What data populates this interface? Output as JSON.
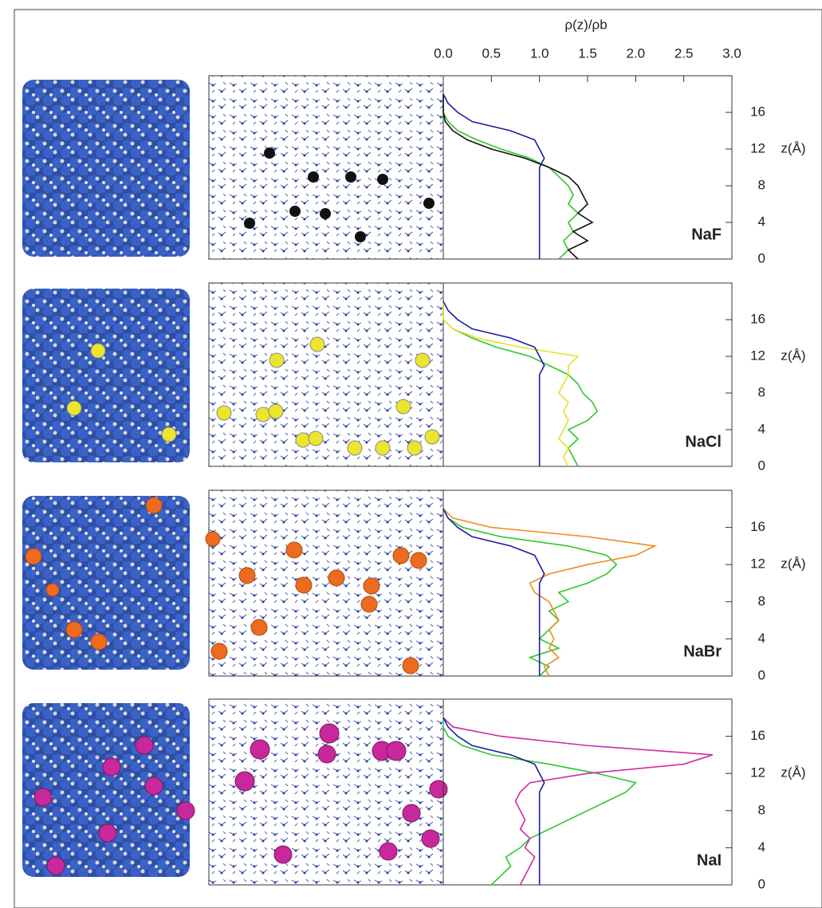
{
  "chart_data": [
    {
      "type": "line",
      "xlabel": "ρ(z)/ρb",
      "ylabel": "z(Å)",
      "label": "NaF",
      "xlim": [
        0,
        3
      ],
      "xticks": [
        {
          "value": 0,
          "label": "0.0"
        },
        {
          "value": 0.5,
          "label": "0.5"
        },
        {
          "value": 1,
          "label": "1.0"
        },
        {
          "value": 1.5,
          "label": "1.5"
        },
        {
          "value": 2,
          "label": "2.0"
        },
        {
          "value": 2.5,
          "label": "2.5"
        },
        {
          "value": 3,
          "label": "3.0"
        }
      ],
      "ylim": [
        0,
        20
      ],
      "yticks": [
        0,
        4,
        8,
        12,
        16
      ],
      "z": [
        0,
        1,
        2,
        3,
        4,
        5,
        6,
        7,
        8,
        9,
        10,
        11,
        12,
        13,
        14,
        15,
        16,
        17,
        18
      ],
      "series": [
        {
          "color": "#2ec82e",
          "values": [
            1.2,
            1.3,
            1.25,
            1.35,
            1.3,
            1.4,
            1.3,
            1.35,
            1.3,
            1.2,
            1.1,
            0.9,
            0.6,
            0.35,
            0.15,
            0.05,
            0,
            0,
            0
          ]
        },
        {
          "color": "#111111",
          "values": [
            1.4,
            1.3,
            1.5,
            1.35,
            1.55,
            1.4,
            1.5,
            1.45,
            1.4,
            1.3,
            1.1,
            0.85,
            0.5,
            0.25,
            0.1,
            0.02,
            0,
            0,
            0
          ]
        },
        {
          "color": "#1c1ca8",
          "values": [
            1,
            1,
            1,
            1,
            1,
            1,
            1,
            1,
            1,
            1,
            1,
            1.05,
            1,
            0.95,
            0.7,
            0.3,
            0.15,
            0.05,
            0
          ]
        }
      ]
    },
    {
      "type": "line",
      "ylabel": "z(Å)",
      "label": "NaCl",
      "xlim": [
        0,
        3
      ],
      "ylim": [
        0,
        20
      ],
      "yticks": [
        0,
        4,
        8,
        12,
        16
      ],
      "z": [
        0,
        1,
        2,
        3,
        4,
        5,
        6,
        7,
        8,
        9,
        10,
        11,
        12,
        13,
        14,
        15,
        16,
        17,
        18
      ],
      "series": [
        {
          "color": "#2ec82e",
          "values": [
            1.4,
            1.35,
            1.3,
            1.4,
            1.3,
            1.5,
            1.6,
            1.55,
            1.45,
            1.4,
            1.3,
            1.1,
            0.9,
            0.55,
            0.3,
            0.1,
            0,
            0,
            0
          ]
        },
        {
          "color": "#e6e02a",
          "values": [
            1.3,
            1.25,
            1.3,
            1.2,
            1.25,
            1.3,
            1.25,
            1.3,
            1.2,
            1.25,
            1.3,
            1.3,
            1.4,
            0.8,
            0.35,
            0.1,
            0,
            0,
            0
          ]
        },
        {
          "color": "#1c1ca8",
          "values": [
            1,
            1,
            1,
            1,
            1,
            1,
            1,
            1,
            1,
            1,
            1,
            1.05,
            1,
            0.95,
            0.7,
            0.3,
            0.15,
            0.05,
            0
          ]
        }
      ]
    },
    {
      "type": "line",
      "ylabel": "z(Å)",
      "label": "NaBr",
      "xlim": [
        0,
        3
      ],
      "ylim": [
        0,
        20
      ],
      "yticks": [
        0,
        4,
        8,
        12,
        16
      ],
      "z": [
        0,
        1,
        2,
        3,
        4,
        5,
        6,
        7,
        8,
        9,
        10,
        11,
        12,
        13,
        14,
        15,
        16,
        17,
        18
      ],
      "series": [
        {
          "color": "#2ec82e",
          "values": [
            1,
            1.1,
            0.9,
            1.2,
            1,
            1.1,
            1.2,
            1.1,
            1.3,
            1.2,
            1.5,
            1.7,
            1.8,
            1.7,
            1.3,
            0.6,
            0.2,
            0.05,
            0
          ]
        },
        {
          "color": "#f08c1e",
          "values": [
            1.1,
            1.05,
            1.2,
            1.1,
            1.15,
            1.1,
            1.2,
            1.15,
            1.1,
            0.95,
            0.9,
            1.1,
            1.5,
            2,
            2.2,
            1.5,
            0.5,
            0.1,
            0
          ]
        },
        {
          "color": "#1c1ca8",
          "values": [
            1,
            1,
            1,
            1,
            1,
            1,
            1,
            1,
            1,
            1,
            1,
            1.05,
            1,
            0.95,
            0.7,
            0.3,
            0.15,
            0.05,
            0
          ]
        }
      ]
    },
    {
      "type": "line",
      "ylabel": "z(Å)",
      "label": "NaI",
      "xlim": [
        0,
        3
      ],
      "ylim": [
        0,
        20
      ],
      "yticks": [
        0,
        4,
        8,
        12,
        16
      ],
      "z": [
        0,
        1,
        2,
        3,
        4,
        5,
        6,
        7,
        8,
        9,
        10,
        11,
        12,
        13,
        14,
        15,
        16,
        17,
        18
      ],
      "series": [
        {
          "color": "#2ec82e",
          "values": [
            0.5,
            0.6,
            0.7,
            0.65,
            0.8,
            0.9,
            1.1,
            1.3,
            1.5,
            1.7,
            1.9,
            2,
            1.6,
            1.1,
            0.5,
            0.2,
            0.05,
            0,
            0
          ]
        },
        {
          "color": "#cc2aa8",
          "values": [
            0.8,
            0.85,
            0.9,
            0.95,
            0.85,
            0.9,
            0.8,
            0.85,
            0.8,
            0.75,
            0.8,
            0.9,
            1.5,
            2.5,
            2.8,
            1.5,
            0.6,
            0.1,
            0
          ]
        },
        {
          "color": "#1c1ca8",
          "values": [
            1,
            1,
            1,
            1,
            1,
            1,
            1,
            1,
            1,
            1,
            1,
            1.05,
            1,
            0.95,
            0.7,
            0.3,
            0.15,
            0.05,
            0
          ]
        }
      ]
    }
  ]
}
